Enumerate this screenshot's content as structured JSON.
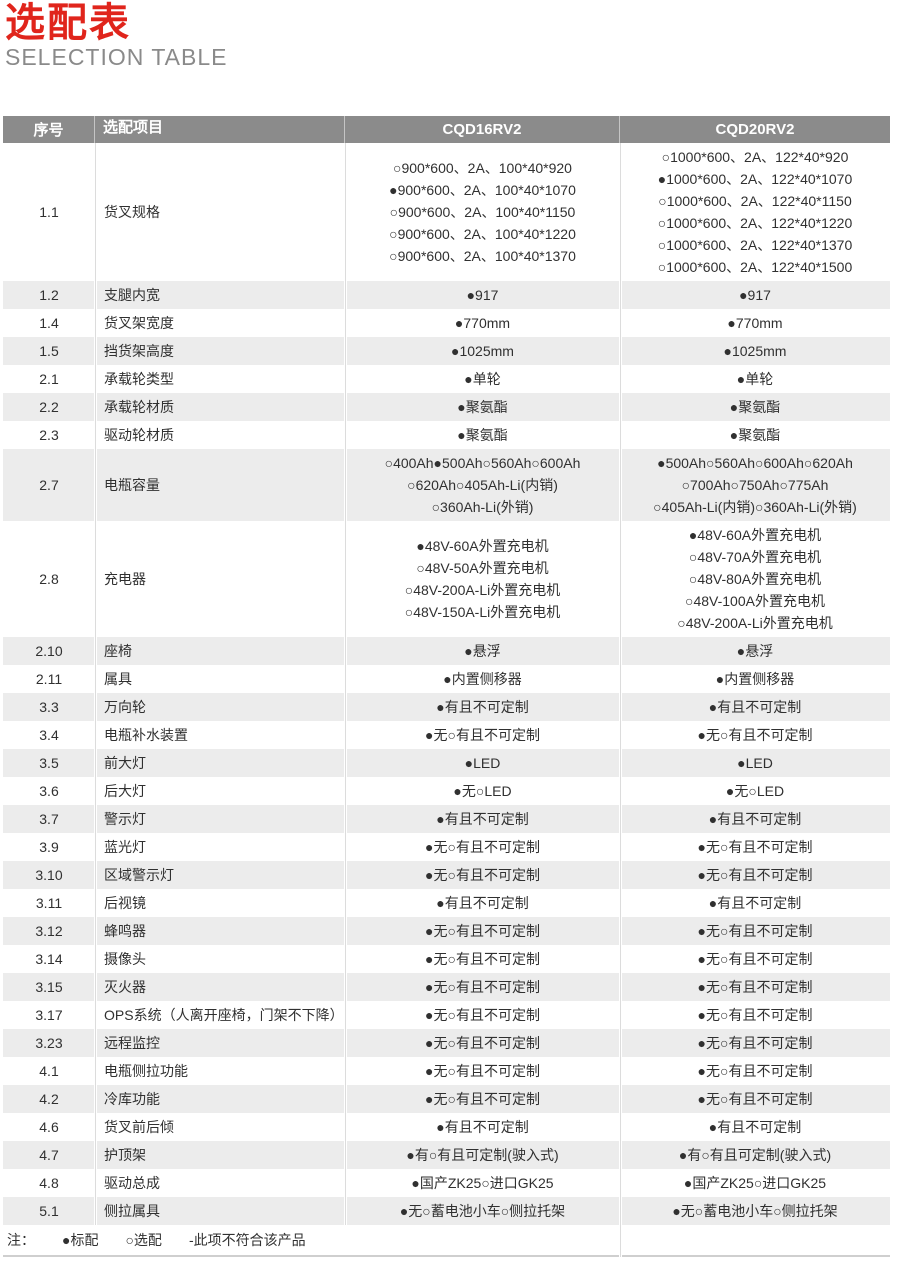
{
  "page": {
    "title": "选配表",
    "subtitle": "SELECTION TABLE"
  },
  "colors": {
    "title_red": "#e0251c",
    "subtitle_gray": "#8a8a8a",
    "header_bg": "#8b8b8b",
    "row_alt_bg": "#ececec",
    "body_text": "#303030"
  },
  "table": {
    "columns": [
      "序号",
      "选配项目",
      "CQD16RV2",
      "CQD20RV2"
    ],
    "rows": [
      {
        "no": "1.1",
        "item": "货叉规格",
        "m16": [
          "○900*600、2A、100*40*920",
          "●900*600、2A、100*40*1070",
          "○900*600、2A、100*40*1150",
          "○900*600、2A、100*40*1220",
          "○900*600、2A、100*40*1370"
        ],
        "m20": [
          "○1000*600、2A、122*40*920",
          "●1000*600、2A、122*40*1070",
          "○1000*600、2A、122*40*1150",
          "○1000*600、2A、122*40*1220",
          "○1000*600、2A、122*40*1370",
          "○1000*600、2A、122*40*1500"
        ]
      },
      {
        "no": "1.2",
        "item": "支腿内宽",
        "m16": [
          "●917"
        ],
        "m20": [
          "●917"
        ]
      },
      {
        "no": "1.4",
        "item": "货叉架宽度",
        "m16": [
          "●770mm"
        ],
        "m20": [
          "●770mm"
        ]
      },
      {
        "no": "1.5",
        "item": "挡货架高度",
        "m16": [
          "●1025mm"
        ],
        "m20": [
          "●1025mm"
        ]
      },
      {
        "no": "2.1",
        "item": "承载轮类型",
        "m16": [
          "●单轮"
        ],
        "m20": [
          "●单轮"
        ]
      },
      {
        "no": "2.2",
        "item": "承载轮材质",
        "m16": [
          "●聚氨酯"
        ],
        "m20": [
          "●聚氨酯"
        ]
      },
      {
        "no": "2.3",
        "item": "驱动轮材质",
        "m16": [
          "●聚氨酯"
        ],
        "m20": [
          "●聚氨酯"
        ]
      },
      {
        "no": "2.7",
        "item": "电瓶容量",
        "m16": [
          "○400Ah●500Ah○560Ah○600Ah",
          "○620Ah○405Ah-Li(内销)",
          "○360Ah-Li(外销)"
        ],
        "m20": [
          "●500Ah○560Ah○600Ah○620Ah",
          "○700Ah○750Ah○775Ah",
          "○405Ah-Li(内销)○360Ah-Li(外销)"
        ]
      },
      {
        "no": "2.8",
        "item": "充电器",
        "m16": [
          "●48V-60A外置充电机",
          "○48V-50A外置充电机",
          "○48V-200A-Li外置充电机",
          "○48V-150A-Li外置充电机"
        ],
        "m20": [
          "●48V-60A外置充电机",
          "○48V-70A外置充电机",
          "○48V-80A外置充电机",
          "○48V-100A外置充电机",
          "○48V-200A-Li外置充电机"
        ]
      },
      {
        "no": "2.10",
        "item": "座椅",
        "m16": [
          "●悬浮"
        ],
        "m20": [
          "●悬浮"
        ]
      },
      {
        "no": "2.11",
        "item": "属具",
        "m16": [
          "●内置侧移器"
        ],
        "m20": [
          "●内置侧移器"
        ]
      },
      {
        "no": "3.3",
        "item": "万向轮",
        "m16": [
          "●有且不可定制"
        ],
        "m20": [
          "●有且不可定制"
        ]
      },
      {
        "no": "3.4",
        "item": "电瓶补水装置",
        "m16": [
          "●无○有且不可定制"
        ],
        "m20": [
          "●无○有且不可定制"
        ]
      },
      {
        "no": "3.5",
        "item": "前大灯",
        "m16": [
          "●LED"
        ],
        "m20": [
          "●LED"
        ]
      },
      {
        "no": "3.6",
        "item": "后大灯",
        "m16": [
          "●无○LED"
        ],
        "m20": [
          "●无○LED"
        ]
      },
      {
        "no": "3.7",
        "item": "警示灯",
        "m16": [
          "●有且不可定制"
        ],
        "m20": [
          "●有且不可定制"
        ]
      },
      {
        "no": "3.9",
        "item": "蓝光灯",
        "m16": [
          "●无○有且不可定制"
        ],
        "m20": [
          "●无○有且不可定制"
        ]
      },
      {
        "no": "3.10",
        "item": "区域警示灯",
        "m16": [
          "●无○有且不可定制"
        ],
        "m20": [
          "●无○有且不可定制"
        ]
      },
      {
        "no": "3.11",
        "item": "后视镜",
        "m16": [
          "●有且不可定制"
        ],
        "m20": [
          "●有且不可定制"
        ]
      },
      {
        "no": "3.12",
        "item": "蜂鸣器",
        "m16": [
          "●无○有且不可定制"
        ],
        "m20": [
          "●无○有且不可定制"
        ]
      },
      {
        "no": "3.14",
        "item": "摄像头",
        "m16": [
          "●无○有且不可定制"
        ],
        "m20": [
          "●无○有且不可定制"
        ]
      },
      {
        "no": "3.15",
        "item": "灭火器",
        "m16": [
          "●无○有且不可定制"
        ],
        "m20": [
          "●无○有且不可定制"
        ]
      },
      {
        "no": "3.17",
        "item": "OPS系统（人离开座椅，门架不下降）",
        "m16": [
          "●无○有且不可定制"
        ],
        "m20": [
          "●无○有且不可定制"
        ]
      },
      {
        "no": "3.23",
        "item": "远程监控",
        "m16": [
          "●无○有且不可定制"
        ],
        "m20": [
          "●无○有且不可定制"
        ]
      },
      {
        "no": "4.1",
        "item": "电瓶侧拉功能",
        "m16": [
          "●无○有且不可定制"
        ],
        "m20": [
          "●无○有且不可定制"
        ]
      },
      {
        "no": "4.2",
        "item": "冷库功能",
        "m16": [
          "●无○有且不可定制"
        ],
        "m20": [
          "●无○有且不可定制"
        ]
      },
      {
        "no": "4.6",
        "item": "货叉前后倾",
        "m16": [
          "●有且不可定制"
        ],
        "m20": [
          "●有且不可定制"
        ]
      },
      {
        "no": "4.7",
        "item": "护顶架",
        "m16": [
          "●有○有且可定制(驶入式)"
        ],
        "m20": [
          "●有○有且可定制(驶入式)"
        ]
      },
      {
        "no": "4.8",
        "item": "驱动总成",
        "m16": [
          "●国产ZK25○进口GK25"
        ],
        "m20": [
          "●国产ZK25○进口GK25"
        ]
      },
      {
        "no": "5.1",
        "item": "侧拉属具",
        "m16": [
          "●无○蓄电池小车○侧拉托架"
        ],
        "m20": [
          "●无○蓄电池小车○侧拉托架"
        ]
      }
    ],
    "note": {
      "label": "注：",
      "legend": [
        "●标配",
        "○选配",
        "-此项不符合该产品"
      ]
    }
  }
}
